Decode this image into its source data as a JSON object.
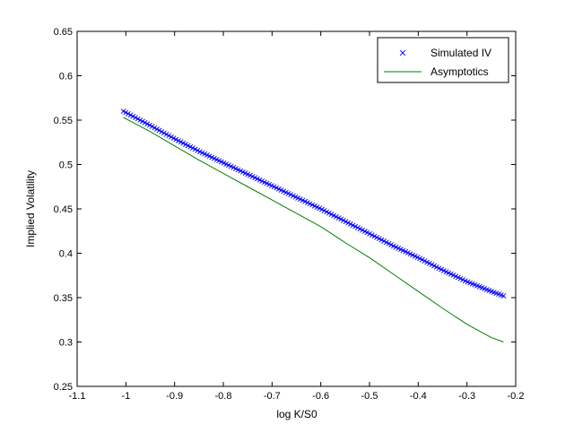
{
  "chart_data": {
    "type": "line",
    "title": "",
    "xlabel": "log K/S0",
    "ylabel": "Implied Volatility",
    "xlim": [
      -1.1,
      -0.2
    ],
    "ylim": [
      0.25,
      0.65
    ],
    "xticks": [
      -1.1,
      -1.0,
      -0.9,
      -0.8,
      -0.7,
      -0.6,
      -0.5,
      -0.4,
      -0.3,
      -0.2
    ],
    "xtick_labels": [
      "-1.1",
      "-1",
      "-0.9",
      "-0.8",
      "-0.7",
      "-0.6",
      "-0.5",
      "-0.4",
      "-0.3",
      "-0.2"
    ],
    "yticks": [
      0.25,
      0.3,
      0.35,
      0.4,
      0.45,
      0.5,
      0.55,
      0.6,
      0.65
    ],
    "ytick_labels": [
      "0.25",
      "0.3",
      "0.35",
      "0.4",
      "0.45",
      "0.5",
      "0.55",
      "0.6",
      "0.65"
    ],
    "grid": false,
    "legend_position": "top-right",
    "series": [
      {
        "name": "Simulated IV",
        "style": "markers",
        "marker": "x",
        "color": "#0000ff",
        "x": [
          -1.005,
          -0.95,
          -0.9,
          -0.85,
          -0.8,
          -0.75,
          -0.7,
          -0.65,
          -0.6,
          -0.55,
          -0.5,
          -0.45,
          -0.4,
          -0.35,
          -0.3,
          -0.25,
          -0.225
        ],
        "y": [
          0.56,
          0.544,
          0.529,
          0.515,
          0.502,
          0.489,
          0.476,
          0.463,
          0.45,
          0.436,
          0.422,
          0.408,
          0.395,
          0.381,
          0.368,
          0.357,
          0.352
        ]
      },
      {
        "name": "Asymptotics",
        "style": "line",
        "color": "#008000",
        "x": [
          -1.005,
          -0.95,
          -0.9,
          -0.85,
          -0.8,
          -0.75,
          -0.7,
          -0.65,
          -0.6,
          -0.55,
          -0.5,
          -0.45,
          -0.4,
          -0.35,
          -0.3,
          -0.25,
          -0.225
        ],
        "y": [
          0.553,
          0.537,
          0.521,
          0.505,
          0.49,
          0.475,
          0.46,
          0.445,
          0.43,
          0.412,
          0.395,
          0.376,
          0.357,
          0.338,
          0.32,
          0.305,
          0.3
        ]
      }
    ]
  }
}
